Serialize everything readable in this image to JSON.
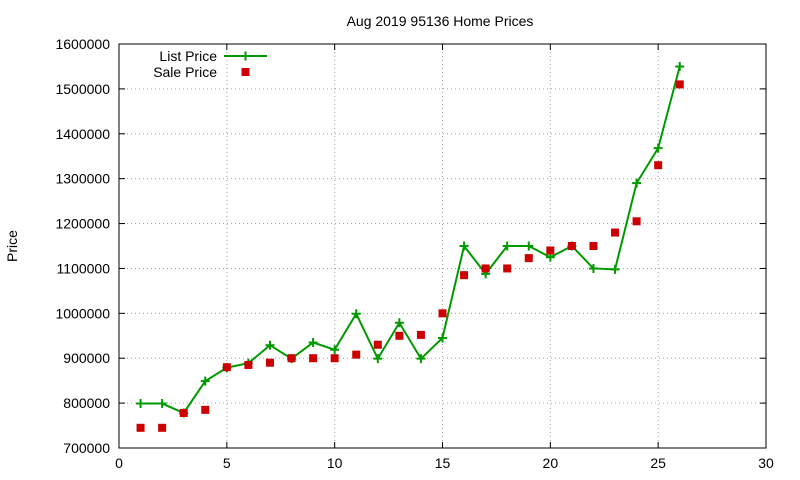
{
  "chart_data": {
    "type": "line",
    "title": "Aug 2019 95136 Home Prices",
    "xlabel": "",
    "ylabel": "Price",
    "xlim": [
      0,
      30
    ],
    "ylim": [
      700000,
      1600000
    ],
    "xticks": [
      0,
      5,
      10,
      15,
      20,
      25,
      30
    ],
    "yticks": [
      700000,
      800000,
      900000,
      1000000,
      1100000,
      1200000,
      1300000,
      1400000,
      1500000,
      1600000
    ],
    "grid": true,
    "legend_position": "top-left",
    "series": [
      {
        "name": "List Price",
        "style": "line-with-plus-markers",
        "color": "#009900",
        "x": [
          1,
          2,
          3,
          4,
          5,
          6,
          7,
          8,
          9,
          10,
          11,
          12,
          13,
          14,
          15,
          16,
          17,
          18,
          19,
          20,
          21,
          22,
          23,
          24,
          25,
          26
        ],
        "y": [
          799000,
          799000,
          778000,
          849000,
          879000,
          889000,
          929000,
          899000,
          935000,
          919000,
          999000,
          899000,
          979000,
          899000,
          945000,
          1150000,
          1088000,
          1150000,
          1150000,
          1125000,
          1150000,
          1100000,
          1098000,
          1290000,
          1368000,
          1550000
        ]
      },
      {
        "name": "Sale Price",
        "style": "square-markers",
        "color": "#cc0000",
        "x": [
          1,
          2,
          3,
          4,
          5,
          6,
          7,
          8,
          9,
          10,
          11,
          12,
          13,
          14,
          15,
          16,
          17,
          18,
          19,
          20,
          21,
          22,
          23,
          24,
          25,
          26
        ],
        "y": [
          745000,
          745000,
          778000,
          785000,
          880000,
          885000,
          890000,
          900000,
          900000,
          900000,
          908000,
          930000,
          950000,
          952000,
          1000000,
          1085000,
          1100000,
          1100000,
          1123000,
          1140000,
          1150000,
          1150000,
          1180000,
          1205000,
          1330000,
          1510000
        ]
      }
    ]
  }
}
